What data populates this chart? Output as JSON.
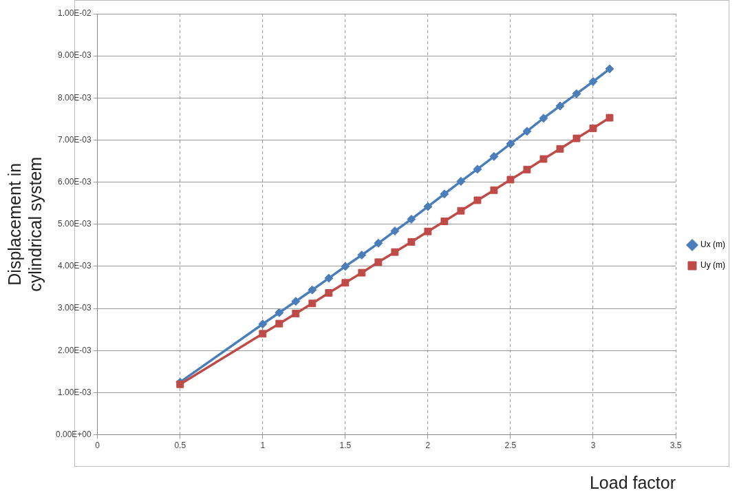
{
  "chart_data": {
    "type": "line",
    "xlabel": "Load factor",
    "ylabel": "Displacement in cylindrical system",
    "x": [
      0.5,
      1.0,
      1.1,
      1.2,
      1.3,
      1.4,
      1.5,
      1.6,
      1.7,
      1.8,
      1.9,
      2.0,
      2.1,
      2.2,
      2.3,
      2.4,
      2.5,
      2.6,
      2.7,
      2.8,
      2.9,
      3.0,
      3.1
    ],
    "series": [
      {
        "name": "Ux (m)",
        "color": "#4a7ebb",
        "marker": "diamond",
        "values": [
          0.00125,
          0.00263,
          0.0029,
          0.00317,
          0.00344,
          0.00372,
          0.004,
          0.00427,
          0.00455,
          0.00484,
          0.00512,
          0.00542,
          0.00572,
          0.00602,
          0.00631,
          0.00661,
          0.00691,
          0.00721,
          0.00752,
          0.00781,
          0.0081,
          0.00839,
          0.00869
        ]
      },
      {
        "name": "Uy (m)",
        "color": "#be4b48",
        "marker": "square",
        "values": [
          0.0012,
          0.0024,
          0.00264,
          0.00288,
          0.00312,
          0.00337,
          0.00361,
          0.00385,
          0.0041,
          0.00434,
          0.00458,
          0.00483,
          0.00507,
          0.00532,
          0.00557,
          0.00581,
          0.00606,
          0.0063,
          0.00655,
          0.00679,
          0.00704,
          0.00728,
          0.00753
        ]
      }
    ],
    "xlim": [
      0,
      3.5
    ],
    "xticks": [
      0,
      0.5,
      1,
      1.5,
      2,
      2.5,
      3,
      3.5
    ],
    "ylim": [
      0,
      0.01
    ],
    "yticks": [
      {
        "value": 0,
        "label": "0.00E+00"
      },
      {
        "value": 0.001,
        "label": "1.00E-03"
      },
      {
        "value": 0.002,
        "label": "2.00E-03"
      },
      {
        "value": 0.003,
        "label": "3.00E-03"
      },
      {
        "value": 0.004,
        "label": "4.00E-03"
      },
      {
        "value": 0.005,
        "label": "5.00E-03"
      },
      {
        "value": 0.006,
        "label": "6.00E-03"
      },
      {
        "value": 0.007,
        "label": "7.00E-03"
      },
      {
        "value": 0.008,
        "label": "8.00E-03"
      },
      {
        "value": 0.009,
        "label": "9.00E-03"
      },
      {
        "value": 0.01,
        "label": "1.00E-02"
      }
    ],
    "grid": true,
    "legend": "right",
    "line_style": "solid"
  }
}
